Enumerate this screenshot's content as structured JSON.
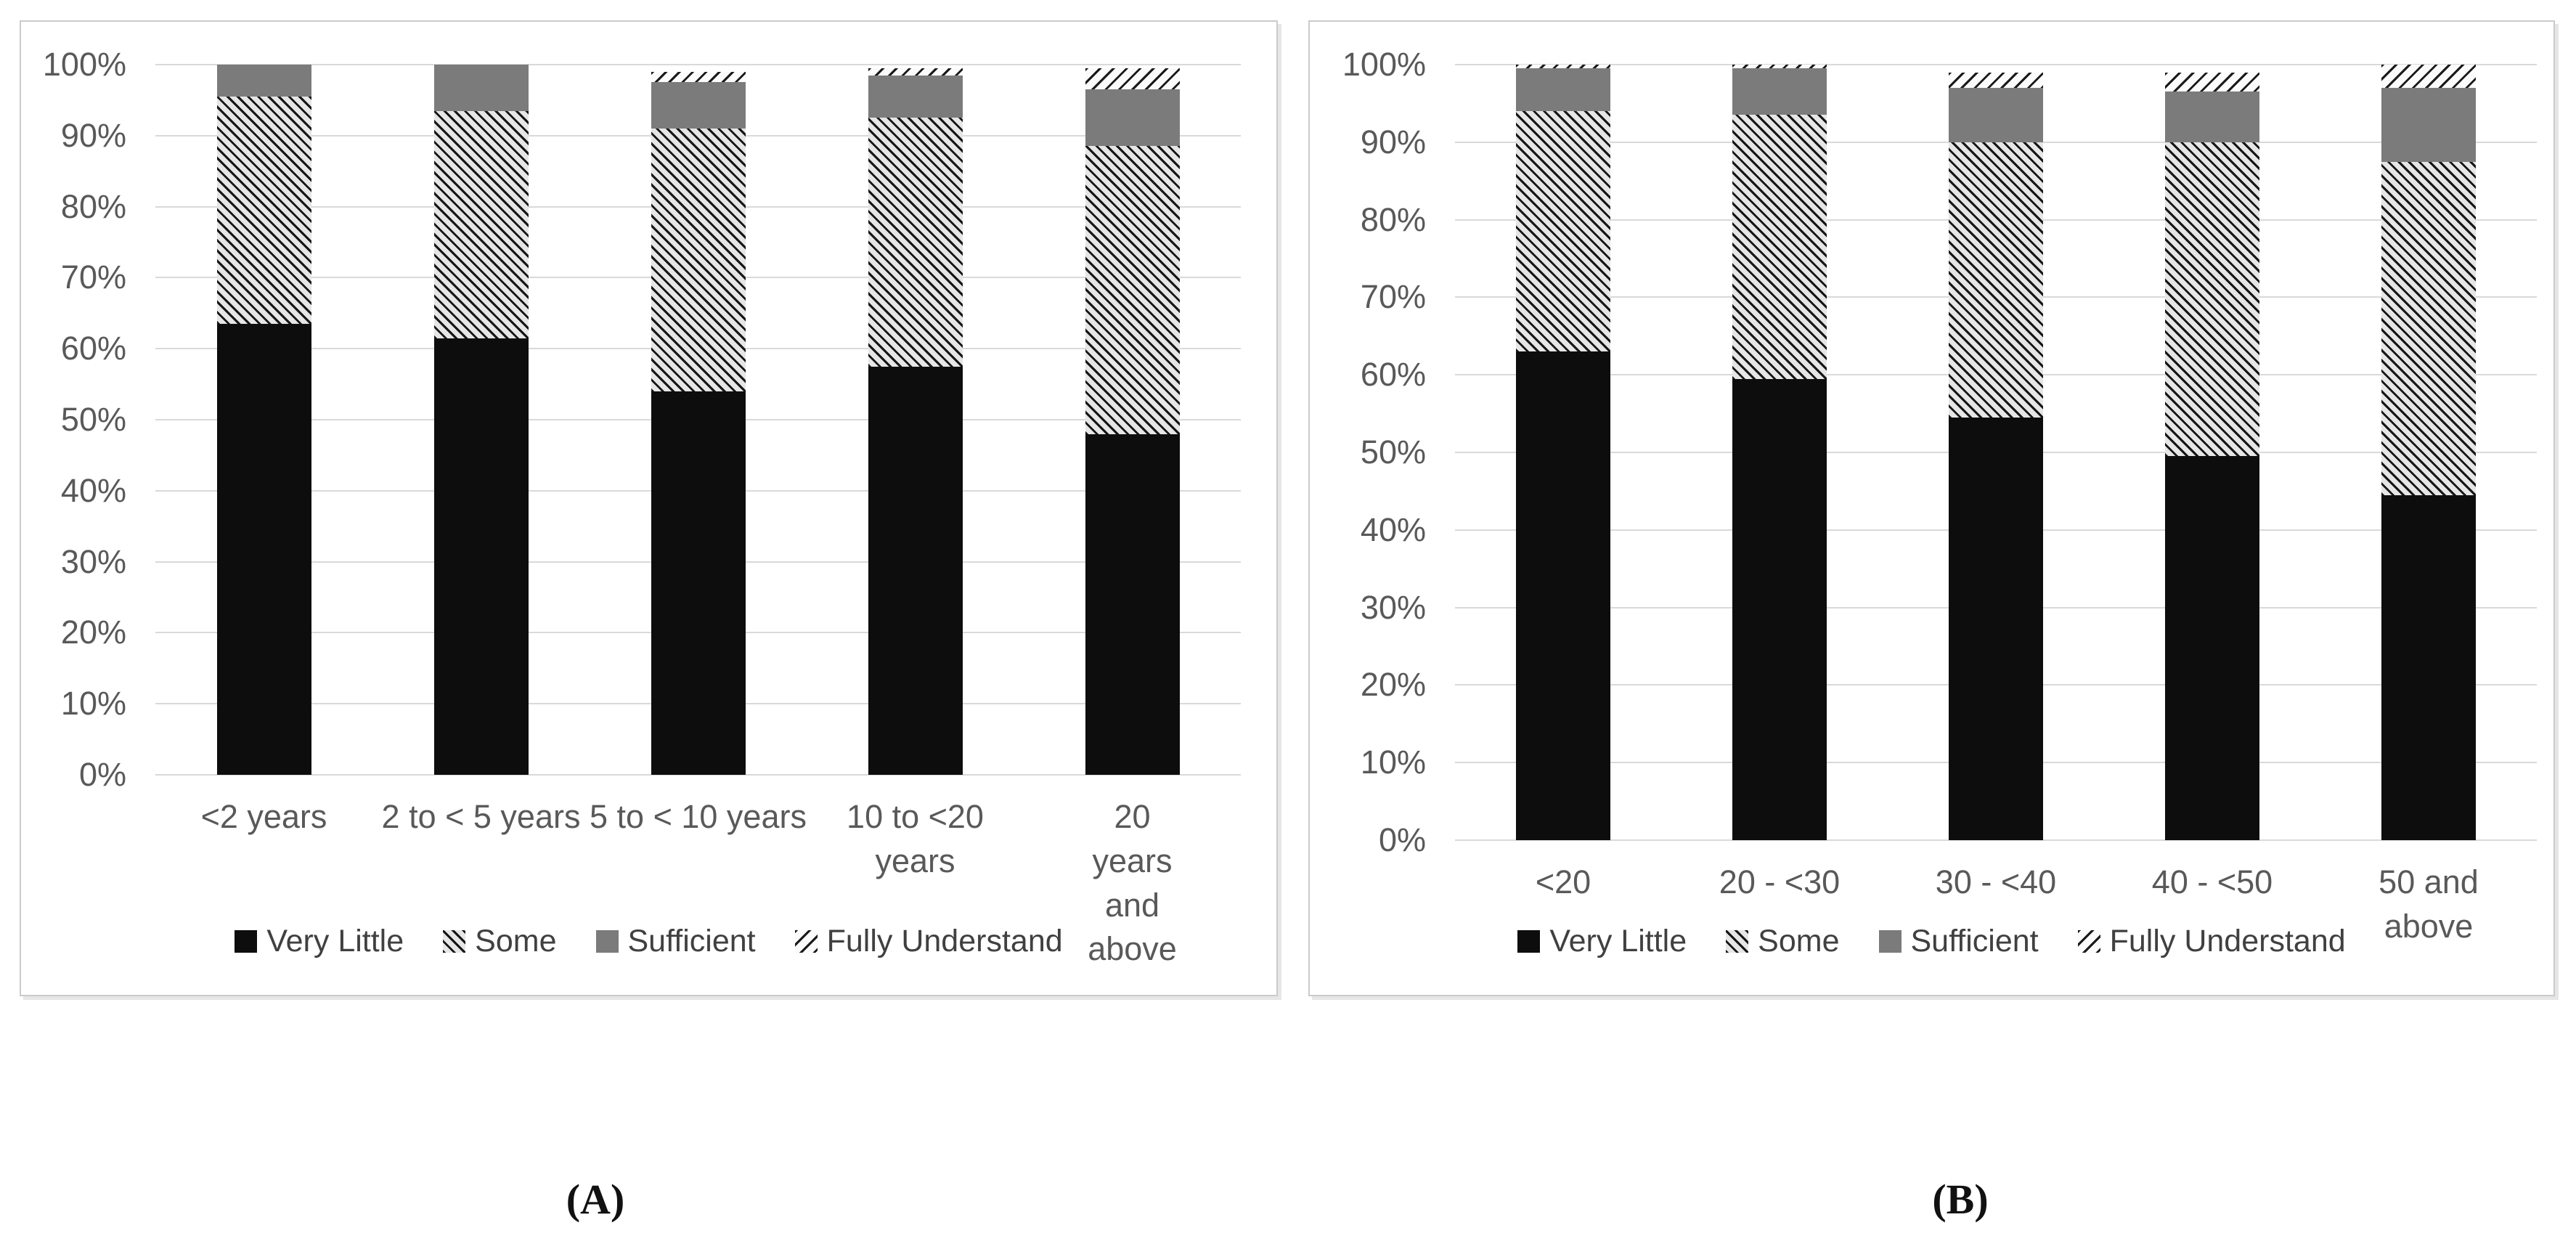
{
  "figure": {
    "caption_a": "(A)",
    "caption_b": "(B)"
  },
  "colors": {
    "very_little": "#0d0d0d",
    "some_line": "#161616",
    "some_bg": "#e6e6e6",
    "sufficient": "#7b7b7b",
    "fully_line": "#1a1a1a",
    "fully_bg": "#fbfbfb",
    "gridline": "#d9d9d9",
    "axis_text": "#595959",
    "legend_text": "#404040"
  },
  "chart_data": [
    {
      "id": "A",
      "type": "bar",
      "stacked": true,
      "units": "percent",
      "caption": "(A)",
      "categories": [
        "<2 years",
        "2 to < 5 years",
        "5 to < 10 years",
        "10 to <20\nyears",
        "20 years and\nabove"
      ],
      "series": [
        {
          "name": "Very Little",
          "pattern": "very-little",
          "values": [
            63.5,
            61.5,
            54,
            57.5,
            48
          ]
        },
        {
          "name": "Some",
          "pattern": "some",
          "values": [
            32,
            32,
            37,
            35,
            40.5
          ]
        },
        {
          "name": "Sufficient",
          "pattern": "sufficient",
          "values": [
            4.5,
            6.5,
            6.5,
            6,
            8
          ]
        },
        {
          "name": "Fully Understand",
          "pattern": "fully-understand",
          "values": [
            0,
            0,
            1.5,
            1,
            3
          ]
        }
      ],
      "ylim": [
        0,
        100
      ],
      "ytick_step": 10,
      "ytick_labels": [
        "0%",
        "10%",
        "20%",
        "30%",
        "40%",
        "50%",
        "60%",
        "70%",
        "80%",
        "90%",
        "100%"
      ],
      "grid": true,
      "legend_position": "bottom"
    },
    {
      "id": "B",
      "type": "bar",
      "stacked": true,
      "units": "percent",
      "caption": "(B)",
      "categories": [
        "<20",
        "20 - <30",
        "30 - <40",
        "40 - <50",
        "50 and above"
      ],
      "series": [
        {
          "name": "Very Little",
          "pattern": "very-little",
          "values": [
            63,
            59.5,
            54.5,
            49.5,
            44.5
          ]
        },
        {
          "name": "Some",
          "pattern": "some",
          "values": [
            31,
            34,
            35.5,
            40.5,
            43
          ]
        },
        {
          "name": "Sufficient",
          "pattern": "sufficient",
          "values": [
            5.5,
            6,
            7,
            6.5,
            9.5
          ]
        },
        {
          "name": "Fully Understand",
          "pattern": "fully-understand",
          "values": [
            0.5,
            0.5,
            2,
            2.5,
            3
          ]
        }
      ],
      "ylim": [
        0,
        100
      ],
      "ytick_step": 10,
      "ytick_labels": [
        "0%",
        "10%",
        "20%",
        "30%",
        "40%",
        "50%",
        "60%",
        "70%",
        "80%",
        "90%",
        "100%"
      ],
      "grid": true,
      "legend_position": "bottom"
    }
  ]
}
